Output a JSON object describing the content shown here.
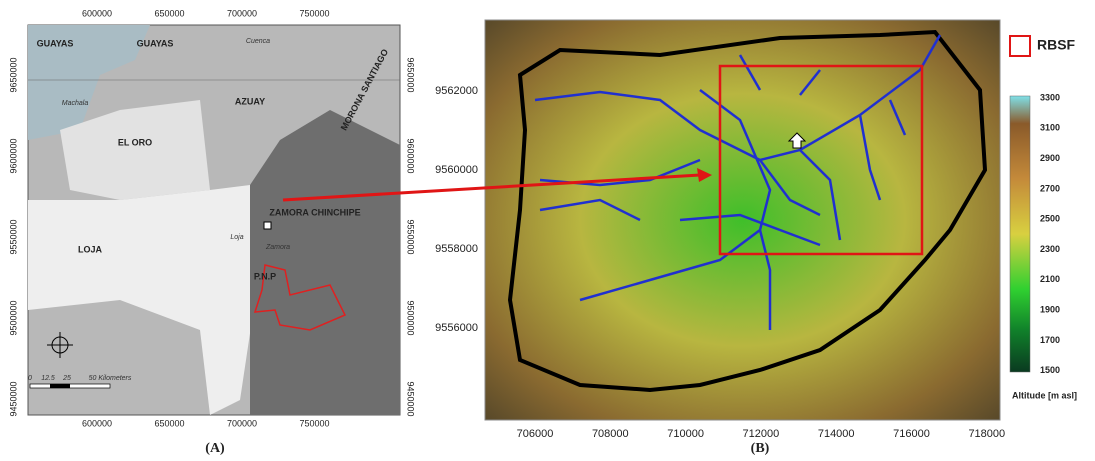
{
  "panel_a": {
    "label": "(A)",
    "x_ticks": [
      "600000",
      "650000",
      "700000",
      "750000"
    ],
    "y_ticks": [
      "9650000",
      "9600000",
      "9550000",
      "9500000",
      "9450000"
    ],
    "regions": [
      "GUAYAS",
      "GUAYAS",
      "AZUAY",
      "MORONA SANTIAGO",
      "EL ORO",
      "LOJA",
      "ZAMORA CHINCHIPE",
      "P.N.P"
    ],
    "cities": [
      "Cuenca",
      "Machala",
      "Loja",
      "Zamora"
    ],
    "scale": [
      "0",
      "12.5",
      "25",
      "50 Kilometers"
    ]
  },
  "panel_b": {
    "label": "(B)",
    "x_ticks": [
      "706000",
      "708000",
      "710000",
      "712000",
      "714000",
      "716000",
      "718000"
    ],
    "y_ticks": [
      "9562000",
      "9560000",
      "9558000",
      "9556000"
    ],
    "legend": "RBSF",
    "colorbar_ticks": [
      "3300",
      "3100",
      "2900",
      "2700",
      "2500",
      "2300",
      "2100",
      "1900",
      "1700",
      "1500"
    ],
    "colorbar_title": "Altitude [m asl]"
  }
}
